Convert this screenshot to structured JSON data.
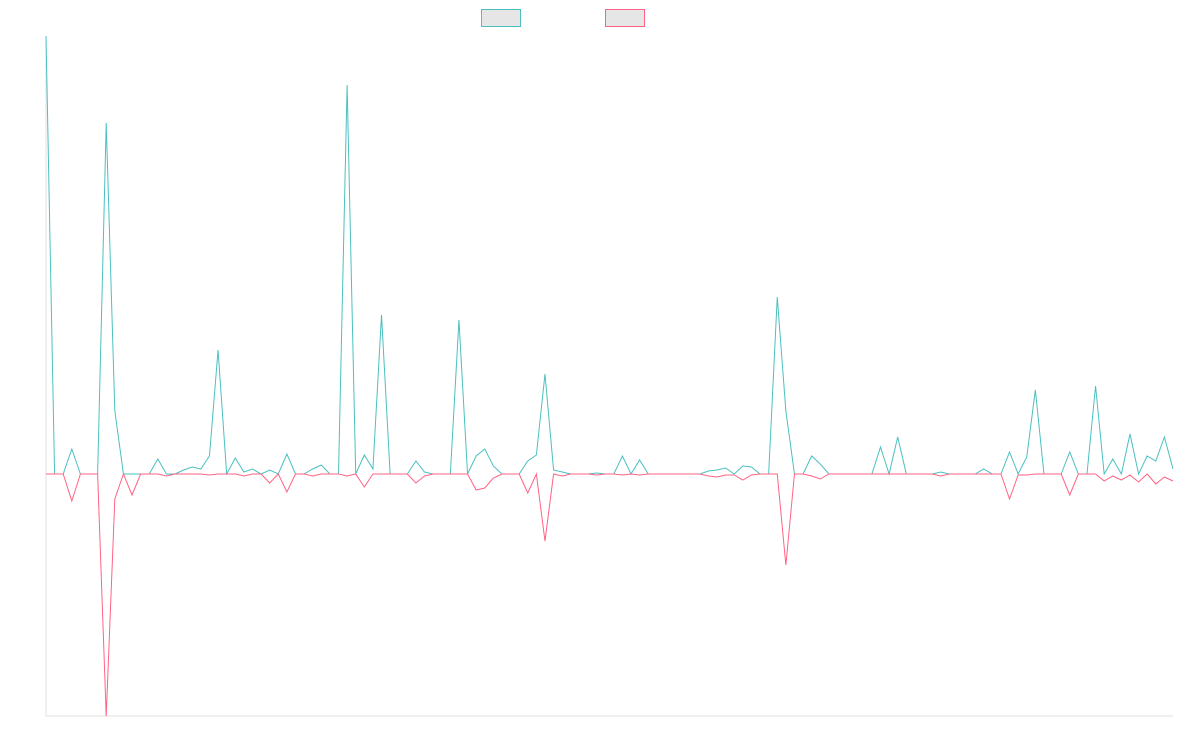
{
  "chart_data": {
    "type": "line",
    "ylim": [
      -242,
      438
    ],
    "legend": "top",
    "series": [
      {
        "color": "#4bc0c0",
        "values": [
          438,
          0,
          0,
          25,
          0,
          0,
          0,
          351,
          63,
          0,
          0,
          0,
          0,
          15,
          0,
          0,
          4,
          7,
          5,
          18,
          124,
          0,
          16,
          2,
          5,
          0,
          4,
          0,
          20,
          0,
          0,
          5,
          9,
          0,
          0,
          389,
          0,
          19,
          5,
          159,
          0,
          0,
          0,
          13,
          2,
          0,
          0,
          0,
          154,
          0,
          18,
          25,
          8,
          0,
          0,
          0,
          13,
          19,
          100,
          4,
          2,
          0,
          0,
          0,
          1,
          0,
          0,
          18,
          0,
          14,
          0,
          0,
          0,
          0,
          0,
          0,
          0,
          3,
          4,
          6,
          0,
          8,
          7,
          0,
          0,
          177,
          63,
          0,
          0,
          18,
          10,
          0,
          0,
          0,
          0,
          0,
          0,
          27,
          0,
          37,
          0,
          0,
          0,
          0,
          2,
          0,
          0,
          0,
          0,
          5,
          0,
          0,
          22,
          0,
          17,
          84,
          0,
          0,
          0,
          22,
          0,
          0,
          88,
          0,
          15,
          0,
          40,
          0,
          18,
          13,
          37,
          5
        ]
      },
      {
        "color": "#ff6384",
        "values": [
          0,
          0,
          0,
          -27,
          0,
          0,
          0,
          -242,
          -25,
          0,
          -21,
          0,
          0,
          0,
          -2,
          0,
          0,
          0,
          0,
          -1,
          0,
          0,
          0,
          -2,
          0,
          0,
          -9,
          0,
          -18,
          0,
          0,
          -2,
          0,
          0,
          0,
          -2,
          0,
          -13,
          0,
          0,
          0,
          0,
          0,
          -9,
          -2,
          0,
          0,
          0,
          0,
          0,
          -16,
          -14,
          -4,
          0,
          0,
          0,
          -19,
          0,
          -67,
          0,
          -2,
          0,
          0,
          0,
          -1,
          0,
          0,
          -1,
          0,
          -1,
          0,
          0,
          0,
          0,
          0,
          0,
          0,
          -2,
          -3,
          -1,
          -1,
          -6,
          -1,
          0,
          0,
          0,
          -91,
          0,
          0,
          -2,
          -5,
          0,
          0,
          0,
          0,
          0,
          0,
          0,
          0,
          0,
          0,
          0,
          0,
          0,
          -2,
          0,
          0,
          0,
          0,
          0,
          0,
          0,
          -25,
          -1,
          -1,
          0,
          0,
          0,
          0,
          -21,
          0,
          0,
          0,
          -7,
          -2,
          -6,
          -1,
          -8,
          0,
          -10,
          -3,
          -7
        ]
      }
    ]
  }
}
